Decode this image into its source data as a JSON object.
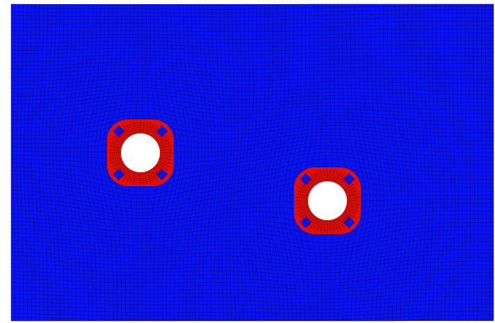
{
  "scene": {
    "description_visible_text": "",
    "colors": {
      "background": "#ffffff",
      "matrix": "#0a14f0",
      "mesh_line": "#00007a",
      "ring": "#e20f07",
      "ring_line": "#6b0000",
      "hole": "#ffffff"
    },
    "parts": [
      {
        "name": "matrix",
        "shape": "rectangle",
        "element_type": "quadrilateral mesh"
      },
      {
        "name": "fiber-left",
        "shape": "ring",
        "element_type": "quadrilateral mesh"
      },
      {
        "name": "fiber-right",
        "shape": "ring",
        "element_type": "quadrilateral mesh"
      }
    ]
  }
}
